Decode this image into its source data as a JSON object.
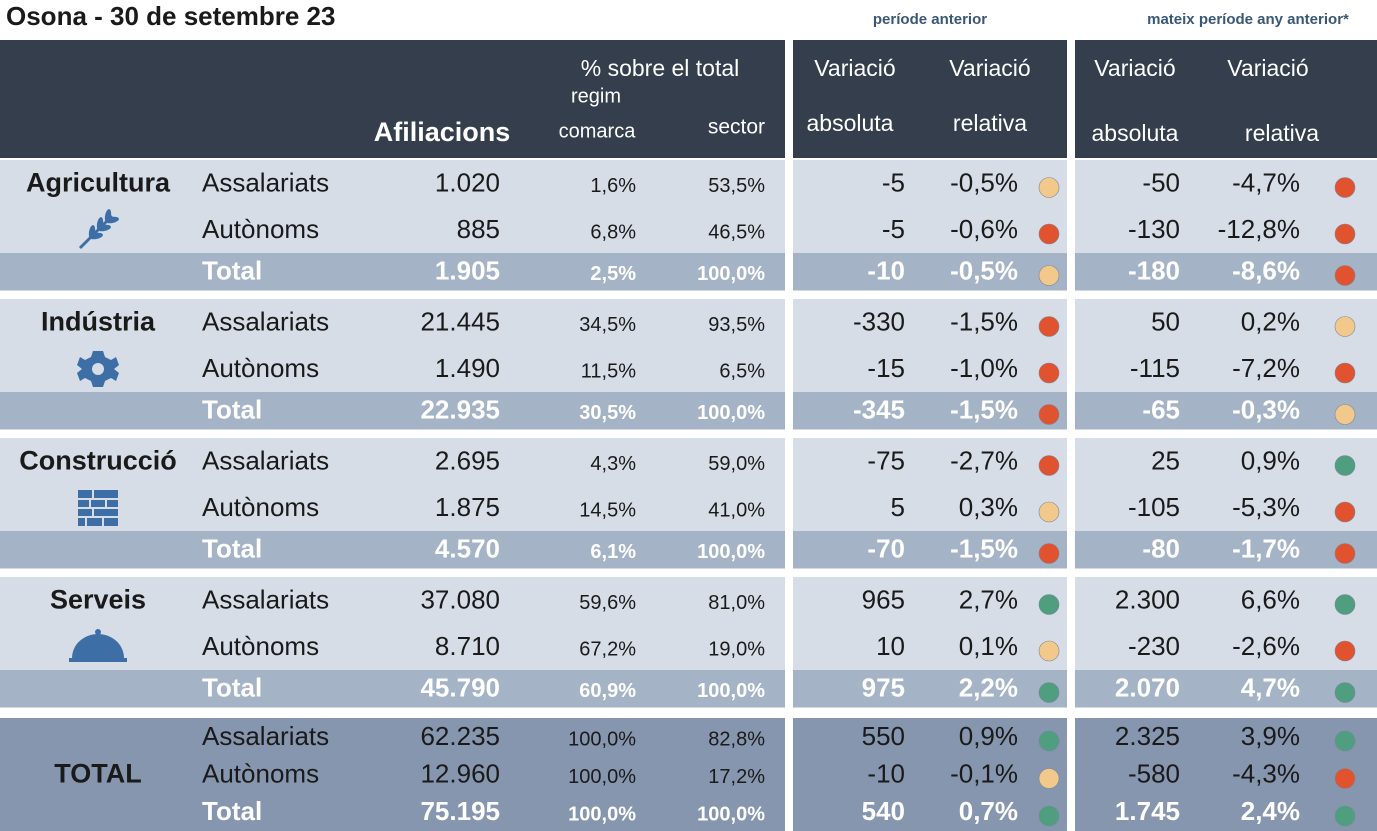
{
  "title": "Osona - 30 de setembre 23",
  "group_labels": [
    "període anterior",
    "mateix període any anterior*"
  ],
  "header": {
    "pct_total": "% sobre el total",
    "regim": "regim",
    "afiliacions": "Afiliacions",
    "comarca": "comarca",
    "sector": "sector",
    "prev": [
      "Variació",
      "Variació",
      "absoluta",
      "relativa"
    ],
    "year": [
      "Variació",
      "Variació",
      "absoluta",
      "relativa"
    ]
  },
  "colors": {
    "yellow": "#f2c98a",
    "red": "#e0532e",
    "green": "#4f9e80"
  },
  "sectors": [
    {
      "name": "Agricultura",
      "rows": [
        {
          "label": "Assalariats",
          "afiliacions": "1.020",
          "comarca": "1,6%",
          "sector": "53,5%",
          "prev": {
            "abs": "-5",
            "rel": "-0,5%",
            "dot": "yellow"
          },
          "year": {
            "abs": "-50",
            "rel": "-4,7%",
            "dot": "red"
          }
        },
        {
          "label": "Autònoms",
          "afiliacions": "885",
          "comarca": "6,8%",
          "sector": "46,5%",
          "prev": {
            "abs": "-5",
            "rel": "-0,6%",
            "dot": "red"
          },
          "year": {
            "abs": "-130",
            "rel": "-12,8%",
            "dot": "red"
          }
        },
        {
          "label": "Total",
          "afiliacions": "1.905",
          "comarca": "2,5%",
          "sector": "100,0%",
          "prev": {
            "abs": "-10",
            "rel": "-0,5%",
            "dot": "yellow"
          },
          "year": {
            "abs": "-180",
            "rel": "-8,6%",
            "dot": "red"
          }
        }
      ]
    },
    {
      "name": "Indústria",
      "rows": [
        {
          "label": "Assalariats",
          "afiliacions": "21.445",
          "comarca": "34,5%",
          "sector": "93,5%",
          "prev": {
            "abs": "-330",
            "rel": "-1,5%",
            "dot": "red"
          },
          "year": {
            "abs": "50",
            "rel": "0,2%",
            "dot": "yellow"
          }
        },
        {
          "label": "Autònoms",
          "afiliacions": "1.490",
          "comarca": "11,5%",
          "sector": "6,5%",
          "prev": {
            "abs": "-15",
            "rel": "-1,0%",
            "dot": "red"
          },
          "year": {
            "abs": "-115",
            "rel": "-7,2%",
            "dot": "red"
          }
        },
        {
          "label": "Total",
          "afiliacions": "22.935",
          "comarca": "30,5%",
          "sector": "100,0%",
          "prev": {
            "abs": "-345",
            "rel": "-1,5%",
            "dot": "red"
          },
          "year": {
            "abs": "-65",
            "rel": "-0,3%",
            "dot": "yellow"
          }
        }
      ]
    },
    {
      "name": "Construcció",
      "rows": [
        {
          "label": "Assalariats",
          "afiliacions": "2.695",
          "comarca": "4,3%",
          "sector": "59,0%",
          "prev": {
            "abs": "-75",
            "rel": "-2,7%",
            "dot": "red"
          },
          "year": {
            "abs": "25",
            "rel": "0,9%",
            "dot": "green"
          }
        },
        {
          "label": "Autònoms",
          "afiliacions": "1.875",
          "comarca": "14,5%",
          "sector": "41,0%",
          "prev": {
            "abs": "5",
            "rel": "0,3%",
            "dot": "yellow"
          },
          "year": {
            "abs": "-105",
            "rel": "-5,3%",
            "dot": "red"
          }
        },
        {
          "label": "Total",
          "afiliacions": "4.570",
          "comarca": "6,1%",
          "sector": "100,0%",
          "prev": {
            "abs": "-70",
            "rel": "-1,5%",
            "dot": "red"
          },
          "year": {
            "abs": "-80",
            "rel": "-1,7%",
            "dot": "red"
          }
        }
      ]
    },
    {
      "name": "Serveis",
      "rows": [
        {
          "label": "Assalariats",
          "afiliacions": "37.080",
          "comarca": "59,6%",
          "sector": "81,0%",
          "prev": {
            "abs": "965",
            "rel": "2,7%",
            "dot": "green"
          },
          "year": {
            "abs": "2.300",
            "rel": "6,6%",
            "dot": "green"
          }
        },
        {
          "label": "Autònoms",
          "afiliacions": "8.710",
          "comarca": "67,2%",
          "sector": "19,0%",
          "prev": {
            "abs": "10",
            "rel": "0,1%",
            "dot": "yellow"
          },
          "year": {
            "abs": "-230",
            "rel": "-2,6%",
            "dot": "red"
          }
        },
        {
          "label": "Total",
          "afiliacions": "45.790",
          "comarca": "60,9%",
          "sector": "100,0%",
          "prev": {
            "abs": "975",
            "rel": "2,2%",
            "dot": "green"
          },
          "year": {
            "abs": "2.070",
            "rel": "4,7%",
            "dot": "green"
          }
        }
      ]
    },
    {
      "name": "TOTAL",
      "rows": [
        {
          "label": "Assalariats",
          "afiliacions": "62.235",
          "comarca": "100,0%",
          "sector": "82,8%",
          "prev": {
            "abs": "550",
            "rel": "0,9%",
            "dot": "green"
          },
          "year": {
            "abs": "2.325",
            "rel": "3,9%",
            "dot": "green"
          }
        },
        {
          "label": "Autònoms",
          "afiliacions": "12.960",
          "comarca": "100,0%",
          "sector": "17,2%",
          "prev": {
            "abs": "-10",
            "rel": "-0,1%",
            "dot": "yellow"
          },
          "year": {
            "abs": "-580",
            "rel": "-4,3%",
            "dot": "red"
          }
        },
        {
          "label": "Total",
          "afiliacions": "75.195",
          "comarca": "100,0%",
          "sector": "100,0%",
          "prev": {
            "abs": "540",
            "rel": "0,7%",
            "dot": "green"
          },
          "year": {
            "abs": "1.745",
            "rel": "2,4%",
            "dot": "green"
          }
        }
      ]
    }
  ]
}
